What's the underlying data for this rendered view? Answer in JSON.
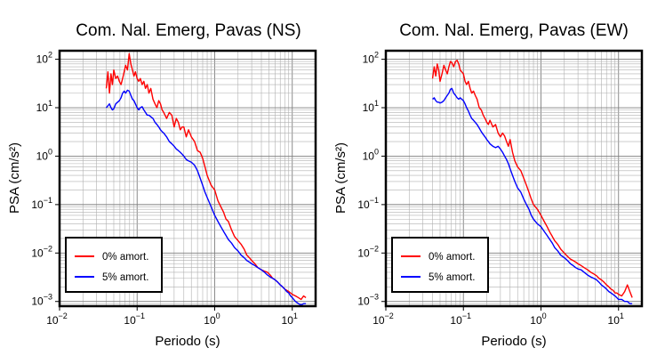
{
  "chart_data": [
    {
      "type": "line",
      "title": "Com. Nal. Emerg, Pavas (NS)",
      "xlabel": "Periodo (s)",
      "ylabel": "PSA (cm/s²)",
      "xscale": "log",
      "yscale": "log",
      "xlim": [
        0.01,
        20
      ],
      "ylim": [
        0.0008,
        150
      ],
      "grid": true,
      "legend_position": "bottom-left",
      "x_ticks": [
        {
          "value": 0.01,
          "base": "10",
          "exp": "−2"
        },
        {
          "value": 0.1,
          "base": "10",
          "exp": "−1"
        },
        {
          "value": 1,
          "base": "10",
          "exp": "0"
        },
        {
          "value": 10,
          "base": "10",
          "exp": "1"
        }
      ],
      "y_ticks": [
        {
          "value": 0.001,
          "base": "10",
          "exp": "−3"
        },
        {
          "value": 0.01,
          "base": "10",
          "exp": "−2"
        },
        {
          "value": 0.1,
          "base": "10",
          "exp": "−1"
        },
        {
          "value": 1,
          "base": "10",
          "exp": "0"
        },
        {
          "value": 10,
          "base": "10",
          "exp": "1"
        },
        {
          "value": 100,
          "base": "10",
          "exp": "2"
        }
      ],
      "series": [
        {
          "name": "0% amort.",
          "color": "#ff0000",
          "x": [
            0.04,
            0.042,
            0.044,
            0.046,
            0.048,
            0.05,
            0.053,
            0.056,
            0.059,
            0.062,
            0.065,
            0.068,
            0.071,
            0.075,
            0.079,
            0.083,
            0.087,
            0.091,
            0.095,
            0.1,
            0.105,
            0.11,
            0.116,
            0.122,
            0.128,
            0.135,
            0.142,
            0.15,
            0.16,
            0.17,
            0.18,
            0.19,
            0.2,
            0.21,
            0.22,
            0.24,
            0.26,
            0.28,
            0.3,
            0.32,
            0.34,
            0.36,
            0.38,
            0.4,
            0.43,
            0.46,
            0.5,
            0.55,
            0.6,
            0.65,
            0.7,
            0.75,
            0.8,
            0.9,
            1.0,
            1.1,
            1.2,
            1.3,
            1.4,
            1.5,
            1.65,
            1.8,
            2.0,
            2.2,
            2.4,
            2.6,
            2.8,
            3.0,
            3.3,
            3.6,
            4.0,
            4.4,
            4.8,
            5.2,
            5.6,
            6.0,
            6.5,
            7.0,
            7.5,
            8.0,
            8.5,
            9.0,
            9.5,
            10.0,
            11.0,
            12.0,
            13.0,
            14.0,
            15.0
          ],
          "y": [
            25,
            55,
            20,
            50,
            30,
            60,
            40,
            45,
            35,
            30,
            40,
            55,
            75,
            60,
            130,
            80,
            60,
            45,
            55,
            40,
            35,
            40,
            30,
            35,
            25,
            30,
            20,
            25,
            15,
            12,
            10,
            14,
            12,
            9,
            8,
            6,
            8,
            7,
            4,
            6,
            5,
            3.5,
            4,
            4,
            2.5,
            3.5,
            2.5,
            2,
            1.3,
            1.2,
            0.9,
            0.6,
            0.4,
            0.25,
            0.2,
            0.12,
            0.09,
            0.07,
            0.05,
            0.045,
            0.03,
            0.022,
            0.018,
            0.015,
            0.012,
            0.009,
            0.008,
            0.007,
            0.006,
            0.005,
            0.0045,
            0.0042,
            0.004,
            0.0035,
            0.003,
            0.0028,
            0.0025,
            0.0022,
            0.002,
            0.0018,
            0.0017,
            0.0016,
            0.0015,
            0.0014,
            0.0013,
            0.0012,
            0.0011,
            0.0013,
            0.0012
          ]
        },
        {
          "name": "5% amort.",
          "color": "#0000ff",
          "x": [
            0.04,
            0.042,
            0.044,
            0.046,
            0.048,
            0.05,
            0.053,
            0.056,
            0.059,
            0.062,
            0.065,
            0.068,
            0.071,
            0.075,
            0.079,
            0.083,
            0.087,
            0.091,
            0.095,
            0.1,
            0.105,
            0.11,
            0.116,
            0.122,
            0.128,
            0.135,
            0.142,
            0.15,
            0.16,
            0.17,
            0.18,
            0.19,
            0.2,
            0.21,
            0.22,
            0.24,
            0.26,
            0.28,
            0.3,
            0.32,
            0.34,
            0.36,
            0.38,
            0.4,
            0.43,
            0.46,
            0.5,
            0.55,
            0.6,
            0.65,
            0.7,
            0.75,
            0.8,
            0.9,
            1.0,
            1.1,
            1.2,
            1.3,
            1.4,
            1.5,
            1.65,
            1.8,
            2.0,
            2.2,
            2.4,
            2.6,
            2.8,
            3.0,
            3.3,
            3.6,
            4.0,
            4.4,
            4.8,
            5.2,
            5.6,
            6.0,
            6.5,
            7.0,
            7.5,
            8.0,
            8.5,
            9.0,
            9.5,
            10.0,
            11.0,
            12.0,
            13.0,
            14.0,
            15.0
          ],
          "y": [
            10,
            11,
            12,
            10,
            9,
            9.5,
            12,
            13,
            14,
            16,
            20,
            22,
            20,
            23,
            22,
            18,
            15,
            14,
            12,
            10,
            9,
            10,
            10.5,
            9,
            8,
            7,
            7,
            6.5,
            6,
            5,
            4.5,
            4,
            3.5,
            3.2,
            3,
            2.5,
            2,
            1.8,
            1.6,
            1.4,
            1.3,
            1.2,
            1.1,
            1.0,
            0.85,
            0.8,
            0.75,
            0.65,
            0.5,
            0.35,
            0.25,
            0.18,
            0.14,
            0.09,
            0.06,
            0.045,
            0.035,
            0.028,
            0.023,
            0.019,
            0.016,
            0.013,
            0.011,
            0.009,
            0.008,
            0.007,
            0.0065,
            0.006,
            0.0055,
            0.005,
            0.0045,
            0.004,
            0.0035,
            0.0032,
            0.003,
            0.0028,
            0.0025,
            0.0022,
            0.002,
            0.0018,
            0.0016,
            0.0015,
            0.0013,
            0.0012,
            0.001,
            0.0009,
            0.00085,
            0.0009,
            0.0009
          ]
        }
      ]
    },
    {
      "type": "line",
      "title": "Com. Nal. Emerg, Pavas (EW)",
      "xlabel": "Periodo (s)",
      "ylabel": "PSA (cm/s²)",
      "xscale": "log",
      "yscale": "log",
      "xlim": [
        0.01,
        20
      ],
      "ylim": [
        0.0008,
        150
      ],
      "grid": true,
      "legend_position": "bottom-left",
      "x_ticks": [
        {
          "value": 0.01,
          "base": "10",
          "exp": "−2"
        },
        {
          "value": 0.1,
          "base": "10",
          "exp": "−1"
        },
        {
          "value": 1,
          "base": "10",
          "exp": "0"
        },
        {
          "value": 10,
          "base": "10",
          "exp": "1"
        }
      ],
      "y_ticks": [
        {
          "value": 0.001,
          "base": "10",
          "exp": "−3"
        },
        {
          "value": 0.01,
          "base": "10",
          "exp": "−2"
        },
        {
          "value": 0.1,
          "base": "10",
          "exp": "−1"
        },
        {
          "value": 1,
          "base": "10",
          "exp": "0"
        },
        {
          "value": 10,
          "base": "10",
          "exp": "1"
        },
        {
          "value": 100,
          "base": "10",
          "exp": "2"
        }
      ],
      "series": [
        {
          "name": "0% amort.",
          "color": "#ff0000",
          "x": [
            0.04,
            0.042,
            0.044,
            0.046,
            0.048,
            0.05,
            0.053,
            0.056,
            0.059,
            0.062,
            0.065,
            0.068,
            0.071,
            0.075,
            0.079,
            0.083,
            0.087,
            0.091,
            0.095,
            0.1,
            0.105,
            0.11,
            0.116,
            0.122,
            0.128,
            0.135,
            0.142,
            0.15,
            0.16,
            0.17,
            0.18,
            0.19,
            0.2,
            0.21,
            0.22,
            0.24,
            0.26,
            0.28,
            0.3,
            0.32,
            0.34,
            0.36,
            0.38,
            0.4,
            0.43,
            0.46,
            0.5,
            0.55,
            0.6,
            0.65,
            0.7,
            0.75,
            0.8,
            0.9,
            1.0,
            1.1,
            1.2,
            1.3,
            1.4,
            1.5,
            1.65,
            1.8,
            2.0,
            2.2,
            2.4,
            2.6,
            2.8,
            3.0,
            3.3,
            3.6,
            4.0,
            4.4,
            4.8,
            5.2,
            5.6,
            6.0,
            6.5,
            7.0,
            7.5,
            8.0,
            8.5,
            9.0,
            9.5,
            10.0,
            11.0,
            12.0,
            13.0,
            14.0,
            15.0
          ],
          "y": [
            40,
            70,
            45,
            80,
            60,
            35,
            50,
            75,
            60,
            50,
            70,
            90,
            85,
            70,
            90,
            95,
            80,
            60,
            55,
            50,
            35,
            30,
            35,
            25,
            20,
            22,
            18,
            15,
            10,
            9,
            7,
            6,
            5,
            4.5,
            5.5,
            4,
            4.5,
            3,
            2.5,
            3,
            2.6,
            2,
            1.6,
            2.2,
            1.2,
            0.8,
            0.6,
            0.5,
            0.35,
            0.25,
            0.18,
            0.13,
            0.1,
            0.08,
            0.06,
            0.045,
            0.035,
            0.027,
            0.022,
            0.018,
            0.015,
            0.012,
            0.01,
            0.0085,
            0.0075,
            0.007,
            0.0065,
            0.006,
            0.0055,
            0.005,
            0.0045,
            0.004,
            0.0037,
            0.0034,
            0.003,
            0.0028,
            0.0025,
            0.0022,
            0.002,
            0.0018,
            0.0017,
            0.0015,
            0.0015,
            0.0014,
            0.0013,
            0.0016,
            0.0022,
            0.0016,
            0.0012
          ]
        },
        {
          "name": "5% amort.",
          "color": "#0000ff",
          "x": [
            0.04,
            0.042,
            0.044,
            0.046,
            0.048,
            0.05,
            0.053,
            0.056,
            0.059,
            0.062,
            0.065,
            0.068,
            0.071,
            0.075,
            0.079,
            0.083,
            0.087,
            0.091,
            0.095,
            0.1,
            0.105,
            0.11,
            0.116,
            0.122,
            0.128,
            0.135,
            0.142,
            0.15,
            0.16,
            0.17,
            0.18,
            0.19,
            0.2,
            0.21,
            0.22,
            0.24,
            0.26,
            0.28,
            0.3,
            0.32,
            0.34,
            0.36,
            0.38,
            0.4,
            0.43,
            0.46,
            0.5,
            0.55,
            0.6,
            0.65,
            0.7,
            0.75,
            0.8,
            0.9,
            1.0,
            1.1,
            1.2,
            1.3,
            1.4,
            1.5,
            1.65,
            1.8,
            2.0,
            2.2,
            2.4,
            2.6,
            2.8,
            3.0,
            3.3,
            3.6,
            4.0,
            4.4,
            4.8,
            5.2,
            5.6,
            6.0,
            6.5,
            7.0,
            7.5,
            8.0,
            8.5,
            9.0,
            9.5,
            10.0,
            11.0,
            12.0,
            13.0,
            14.0,
            15.0
          ],
          "y": [
            15,
            16,
            14,
            13,
            13,
            12.5,
            13,
            14,
            16,
            18,
            20,
            24,
            25,
            20,
            18,
            16,
            15,
            16,
            15,
            14,
            12,
            10,
            8.5,
            7,
            6,
            5.5,
            5,
            4.5,
            3.8,
            3.2,
            2.8,
            2.5,
            2.2,
            2,
            1.8,
            1.6,
            1.5,
            1.6,
            1.4,
            1.2,
            1.0,
            0.85,
            0.7,
            0.55,
            0.4,
            0.3,
            0.22,
            0.18,
            0.13,
            0.1,
            0.08,
            0.06,
            0.05,
            0.04,
            0.035,
            0.028,
            0.023,
            0.019,
            0.016,
            0.013,
            0.011,
            0.009,
            0.008,
            0.007,
            0.006,
            0.0055,
            0.005,
            0.0047,
            0.0045,
            0.004,
            0.0035,
            0.0032,
            0.003,
            0.0028,
            0.0025,
            0.0022,
            0.002,
            0.0018,
            0.0016,
            0.0015,
            0.0014,
            0.0013,
            0.0012,
            0.0011,
            0.0011,
            0.001,
            0.001,
            0.0009,
            0.0009
          ]
        }
      ]
    }
  ]
}
